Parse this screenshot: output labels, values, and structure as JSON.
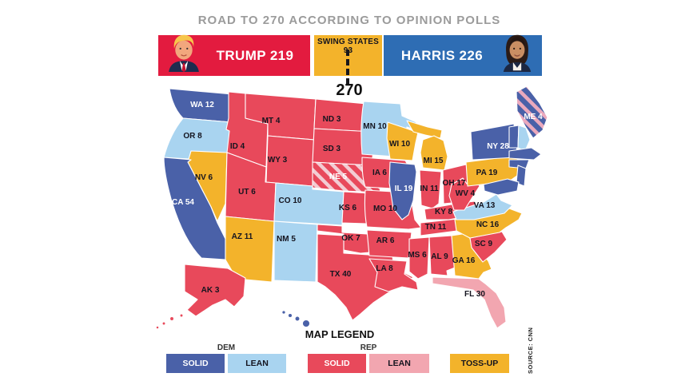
{
  "title": "ROAD TO 270 ACCORDING TO OPINION POLLS",
  "header": {
    "trump_label": "TRUMP 219",
    "swing_label": "SWING STATES 93",
    "harris_label": "HARRIS 226",
    "threshold": "270"
  },
  "colors": {
    "solid-dem": "#4a61a8",
    "lean-dem": "#a9d4f0",
    "solid-rep": "#e8495b",
    "lean-rep": "#f2a6b0",
    "toss-up": "#f3b32b",
    "header-red": "#e31b3f",
    "header-blue": "#2e6db4"
  },
  "states": [
    {
      "abbr": "WA",
      "label": "WA 12",
      "ev": 12,
      "rating": "solid-dem"
    },
    {
      "abbr": "OR",
      "label": "OR 8",
      "ev": 8,
      "rating": "lean-dem"
    },
    {
      "abbr": "CA",
      "label": "CA 54",
      "ev": 54,
      "rating": "solid-dem"
    },
    {
      "abbr": "NV",
      "label": "NV 6",
      "ev": 6,
      "rating": "toss-up"
    },
    {
      "abbr": "ID",
      "label": "ID 4",
      "ev": 4,
      "rating": "solid-rep"
    },
    {
      "abbr": "MT",
      "label": "MT 4",
      "ev": 4,
      "rating": "solid-rep"
    },
    {
      "abbr": "WY",
      "label": "WY 3",
      "ev": 3,
      "rating": "solid-rep"
    },
    {
      "abbr": "UT",
      "label": "UT 6",
      "ev": 6,
      "rating": "solid-rep"
    },
    {
      "abbr": "CO",
      "label": "CO 10",
      "ev": 10,
      "rating": "lean-dem"
    },
    {
      "abbr": "AZ",
      "label": "AZ 11",
      "ev": 11,
      "rating": "toss-up"
    },
    {
      "abbr": "NM",
      "label": "NM 5",
      "ev": 5,
      "rating": "lean-dem"
    },
    {
      "abbr": "ND",
      "label": "ND 3",
      "ev": 3,
      "rating": "solid-rep"
    },
    {
      "abbr": "SD",
      "label": "SD 3",
      "ev": 3,
      "rating": "solid-rep"
    },
    {
      "abbr": "NE",
      "label": "NE 5",
      "ev": 5,
      "rating": "split-rep"
    },
    {
      "abbr": "KS",
      "label": "KS 6",
      "ev": 6,
      "rating": "solid-rep"
    },
    {
      "abbr": "OK",
      "label": "OK 7",
      "ev": 7,
      "rating": "solid-rep"
    },
    {
      "abbr": "TX",
      "label": "TX 40",
      "ev": 40,
      "rating": "solid-rep"
    },
    {
      "abbr": "MN",
      "label": "MN 10",
      "ev": 10,
      "rating": "lean-dem"
    },
    {
      "abbr": "IA",
      "label": "IA 6",
      "ev": 6,
      "rating": "solid-rep"
    },
    {
      "abbr": "MO",
      "label": "MO 10",
      "ev": 10,
      "rating": "solid-rep"
    },
    {
      "abbr": "AR",
      "label": "AR 6",
      "ev": 6,
      "rating": "solid-rep"
    },
    {
      "abbr": "LA",
      "label": "LA 8",
      "ev": 8,
      "rating": "solid-rep"
    },
    {
      "abbr": "WI",
      "label": "WI 10",
      "ev": 10,
      "rating": "toss-up"
    },
    {
      "abbr": "IL",
      "label": "IL 19",
      "ev": 19,
      "rating": "solid-dem"
    },
    {
      "abbr": "MI",
      "label": "MI 15",
      "ev": 15,
      "rating": "toss-up"
    },
    {
      "abbr": "IN",
      "label": "IN 11",
      "ev": 11,
      "rating": "solid-rep"
    },
    {
      "abbr": "OH",
      "label": "OH 17",
      "ev": 17,
      "rating": "solid-rep"
    },
    {
      "abbr": "KY",
      "label": "KY 8",
      "ev": 8,
      "rating": "solid-rep"
    },
    {
      "abbr": "TN",
      "label": "TN 11",
      "ev": 11,
      "rating": "solid-rep"
    },
    {
      "abbr": "MS",
      "label": "MS 6",
      "ev": 6,
      "rating": "solid-rep"
    },
    {
      "abbr": "AL",
      "label": "AL 9",
      "ev": 9,
      "rating": "solid-rep"
    },
    {
      "abbr": "GA",
      "label": "GA 16",
      "ev": 16,
      "rating": "toss-up"
    },
    {
      "abbr": "FL",
      "label": "FL 30",
      "ev": 30,
      "rating": "lean-rep"
    },
    {
      "abbr": "SC",
      "label": "SC 9",
      "ev": 9,
      "rating": "solid-rep"
    },
    {
      "abbr": "NC",
      "label": "NC 16",
      "ev": 16,
      "rating": "toss-up"
    },
    {
      "abbr": "VA",
      "label": "VA 13",
      "ev": 13,
      "rating": "lean-dem"
    },
    {
      "abbr": "WV",
      "label": "WV 4",
      "ev": 4,
      "rating": "solid-rep"
    },
    {
      "abbr": "PA",
      "label": "PA 19",
      "ev": 19,
      "rating": "toss-up"
    },
    {
      "abbr": "NY",
      "label": "NY 28",
      "ev": 28,
      "rating": "solid-dem"
    },
    {
      "abbr": "ME",
      "label": "ME 4",
      "ev": 4,
      "rating": "split-dem"
    },
    {
      "abbr": "AK",
      "label": "AK 3",
      "ev": 3,
      "rating": "solid-rep"
    }
  ],
  "small_states": [
    {
      "abbr": "VT",
      "rating": "solid-dem"
    },
    {
      "abbr": "NH",
      "rating": "lean-dem"
    },
    {
      "abbr": "MA",
      "rating": "solid-dem"
    },
    {
      "abbr": "CT",
      "rating": "solid-dem"
    },
    {
      "abbr": "NJ",
      "rating": "solid-dem"
    },
    {
      "abbr": "MD",
      "rating": "solid-dem"
    },
    {
      "abbr": "HI",
      "rating": "solid-dem"
    }
  ],
  "legend": {
    "title": "MAP LEGEND",
    "dem_group": "DEM",
    "rep_group": "REP",
    "solid_dem": "SOLID",
    "lean_dem": "LEAN",
    "solid_rep": "SOLID",
    "lean_rep": "LEAN",
    "tossup": "TOSS-UP"
  },
  "source": "SOURCE: CNN"
}
